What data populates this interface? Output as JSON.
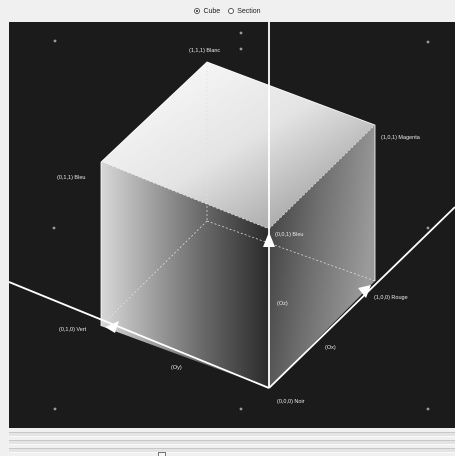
{
  "mode_selector": {
    "options": [
      {
        "label": "Cube",
        "selected": true
      },
      {
        "label": "Section",
        "selected": false
      }
    ]
  },
  "vertices": {
    "white": "(1,1,1) Blanc",
    "magenta": "(1,0,1) Magenta",
    "cyan": "(0,1,1) Bleu",
    "blue": "(0,0,1) Bleu",
    "green": "(0,1,0) Vert",
    "red": "(1,0,0) Rouge",
    "black": "(0,0,0) Noir"
  },
  "axes": {
    "z": "(Oz)",
    "x": "(Ox)",
    "y": "(Oy)"
  },
  "colors": {
    "viewport_bg": "#1b1b1b",
    "axis_line": "#ffffff"
  }
}
